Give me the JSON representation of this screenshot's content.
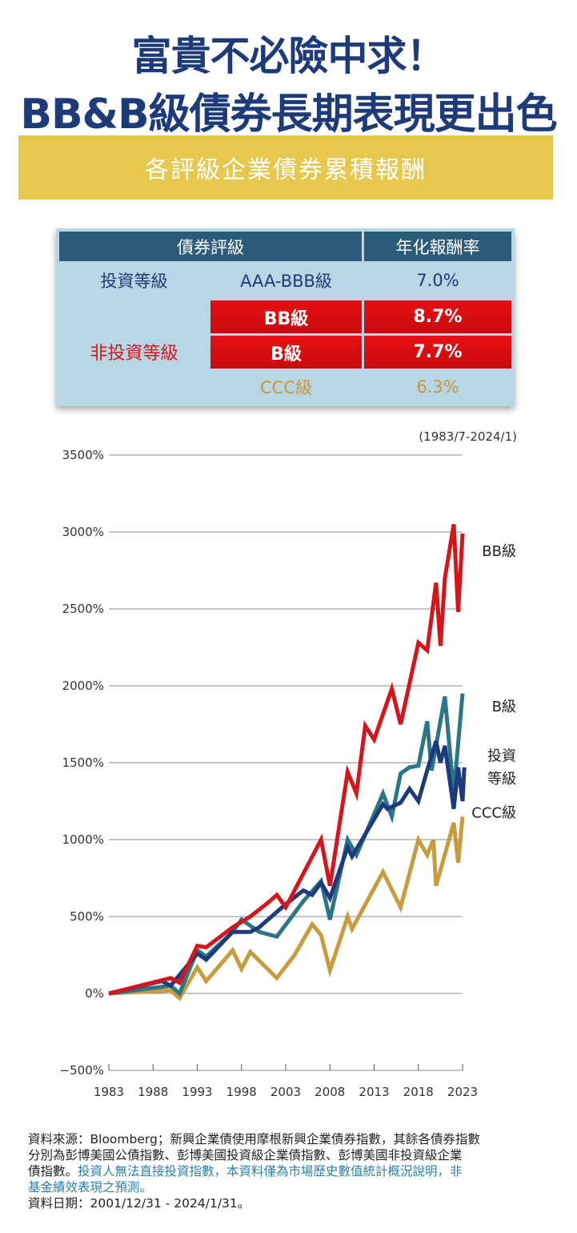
{
  "header": {
    "title_line1": "富貴不必險中求！",
    "title_line2": "BB&B級債券長期表現更出色",
    "banner": "各評級企業債券累積報酬"
  },
  "table": {
    "col_rating": "債券評級",
    "col_return": "年化報酬率",
    "investment_grade": "投資等級",
    "non_investment_grade": "非投資等級",
    "rows": [
      {
        "grade": "AAA-BBB級",
        "return": "7.0%"
      },
      {
        "grade": "BB級",
        "return": "8.7%"
      },
      {
        "grade": "B級",
        "return": "7.7%"
      },
      {
        "grade": "CCC級",
        "return": "6.3%"
      }
    ]
  },
  "chart_data": {
    "type": "line",
    "period_note": "(1983/7-2024/1)",
    "ylim": [
      -500,
      3500
    ],
    "yticks": [
      -500,
      0,
      500,
      1000,
      1500,
      2000,
      2500,
      3000,
      3500
    ],
    "ytick_labels": [
      "−500%",
      "0%",
      "500%",
      "1000%",
      "1500%",
      "2000%",
      "2500%",
      "3000%",
      "3500%"
    ],
    "xlim": [
      1983,
      2023
    ],
    "xticks": [
      1983,
      1988,
      1993,
      1998,
      2003,
      2008,
      2013,
      2018,
      2023
    ],
    "series": [
      {
        "name": "CCC級",
        "color": "#c89b3c",
        "points": [
          [
            1983,
            0
          ],
          [
            1990,
            20
          ],
          [
            1991,
            -30
          ],
          [
            1993,
            170
          ],
          [
            1994,
            80
          ],
          [
            1997,
            280
          ],
          [
            1998,
            160
          ],
          [
            1999,
            270
          ],
          [
            2002,
            100
          ],
          [
            2004,
            250
          ],
          [
            2006,
            450
          ],
          [
            2007,
            380
          ],
          [
            2008,
            150
          ],
          [
            2010,
            500
          ],
          [
            2010.5,
            420
          ],
          [
            2014,
            790
          ],
          [
            2016,
            560
          ],
          [
            2018,
            1000
          ],
          [
            2019,
            900
          ],
          [
            2019.7,
            1000
          ],
          [
            2020,
            700
          ],
          [
            2022,
            1110
          ],
          [
            2022.5,
            850
          ],
          [
            2023,
            1150
          ]
        ]
      },
      {
        "name": "B級",
        "color": "#2a7586",
        "points": [
          [
            1983,
            0
          ],
          [
            1990,
            50
          ],
          [
            1991,
            0
          ],
          [
            1993,
            280
          ],
          [
            1994,
            240
          ],
          [
            1997,
            400
          ],
          [
            1998,
            480
          ],
          [
            2000,
            400
          ],
          [
            2002,
            370
          ],
          [
            2005,
            600
          ],
          [
            2007,
            730
          ],
          [
            2008,
            480
          ],
          [
            2010,
            1000
          ],
          [
            2011,
            900
          ],
          [
            2014,
            1300
          ],
          [
            2015,
            1150
          ],
          [
            2016,
            1430
          ],
          [
            2017,
            1470
          ],
          [
            2018,
            1480
          ],
          [
            2019,
            1770
          ],
          [
            2019.5,
            1450
          ],
          [
            2021,
            1930
          ],
          [
            2022,
            1300
          ],
          [
            2023,
            1950
          ]
        ]
      },
      {
        "name": "投資等級",
        "color": "#1e3a7c",
        "points": [
          [
            1983,
            0
          ],
          [
            1989,
            80
          ],
          [
            1990,
            50
          ],
          [
            1993,
            260
          ],
          [
            1994,
            220
          ],
          [
            1997,
            400
          ],
          [
            1999,
            400
          ],
          [
            2000,
            430
          ],
          [
            2003,
            580
          ],
          [
            2005,
            670
          ],
          [
            2006,
            640
          ],
          [
            2007,
            720
          ],
          [
            2008,
            620
          ],
          [
            2010,
            950
          ],
          [
            2010.5,
            890
          ],
          [
            2014,
            1230
          ],
          [
            2014.5,
            1200
          ],
          [
            2016,
            1240
          ],
          [
            2017,
            1330
          ],
          [
            2018,
            1250
          ],
          [
            2019,
            1450
          ],
          [
            2020,
            1640
          ],
          [
            2020.5,
            1500
          ],
          [
            2021,
            1610
          ],
          [
            2022,
            1200
          ],
          [
            2022.5,
            1470
          ],
          [
            2023,
            1250
          ],
          [
            2023.2,
            1470
          ]
        ]
      },
      {
        "name": "BB級",
        "color": "#d7141a",
        "points": [
          [
            1983,
            0
          ],
          [
            1990,
            100
          ],
          [
            1991,
            70
          ],
          [
            1993,
            310
          ],
          [
            1994,
            300
          ],
          [
            1997,
            430
          ],
          [
            1999,
            500
          ],
          [
            2001,
            590
          ],
          [
            2002,
            640
          ],
          [
            2003,
            560
          ],
          [
            2007,
            1000
          ],
          [
            2008,
            700
          ],
          [
            2010,
            1440
          ],
          [
            2011,
            1300
          ],
          [
            2012,
            1740
          ],
          [
            2013,
            1650
          ],
          [
            2015,
            1980
          ],
          [
            2016,
            1750
          ],
          [
            2018,
            2280
          ],
          [
            2019,
            2230
          ],
          [
            2020,
            2670
          ],
          [
            2020.5,
            2260
          ],
          [
            2021,
            2700
          ],
          [
            2022,
            3050
          ],
          [
            2022.5,
            2480
          ],
          [
            2023,
            2990
          ]
        ]
      }
    ],
    "series_labels": [
      {
        "series": "BB級",
        "lines": [
          "BB級"
        ]
      },
      {
        "series": "B級",
        "lines": [
          "B級"
        ]
      },
      {
        "series": "投資等級",
        "lines": [
          "投資",
          "等級"
        ]
      },
      {
        "series": "CCC級",
        "lines": [
          "CCC級"
        ]
      }
    ]
  },
  "footer": {
    "source_1": "資料來源：Bloomberg；新興企業債使用摩根新興企業債券指數，其餘各債券指數",
    "source_2": "分別為彭博美國公債指數、彭博美國投資級企業債指數、彭博美國非投資級企業",
    "source_3a": "債指數。",
    "source_3b": "投資人無法直接投資指數，本資料僅為市場歷史數值統計概況說明，非",
    "source_4": "基金績效表現之預測。",
    "date": "資料日期：2001/12/31 - 2024/1/31。"
  }
}
